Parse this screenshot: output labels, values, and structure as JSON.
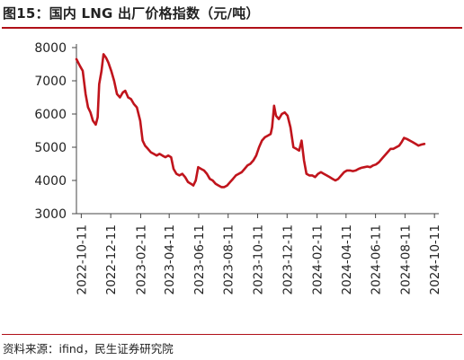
{
  "title": "图15：国内 LNG 出厂价格指数（元/吨）",
  "source": "资料来源：ifind，民生证券研究院",
  "colors": {
    "accent": "#b01018",
    "line": "#c0141c",
    "axis": "#444444"
  },
  "chart_data": {
    "type": "line",
    "title": "图15：国内 LNG 出厂价格指数（元/吨）",
    "xlabel": "",
    "ylabel": "",
    "ylim": [
      3000,
      8000
    ],
    "yticks": [
      3000,
      4000,
      5000,
      6000,
      7000,
      8000
    ],
    "xlim": [
      "2022-10-01",
      "2024-10-20"
    ],
    "xtick_labels": [
      "2022-10-11",
      "2022-12-11",
      "2023-02-11",
      "2023-04-11",
      "2023-06-11",
      "2023-08-11",
      "2023-10-11",
      "2023-12-11",
      "2024-02-11",
      "2024-04-11",
      "2024-06-11",
      "2024-08-11",
      "2024-10-11"
    ],
    "grid": false,
    "legend": "none",
    "series": [
      {
        "name": "",
        "points": [
          [
            "2022-10-01",
            7650
          ],
          [
            "2022-10-08",
            7450
          ],
          [
            "2022-10-14",
            7300
          ],
          [
            "2022-10-20",
            6600
          ],
          [
            "2022-10-25",
            6200
          ],
          [
            "2022-10-30",
            6050
          ],
          [
            "2022-11-04",
            5800
          ],
          [
            "2022-11-10",
            5680
          ],
          [
            "2022-11-14",
            5900
          ],
          [
            "2022-11-17",
            6900
          ],
          [
            "2022-11-22",
            7300
          ],
          [
            "2022-11-26",
            7800
          ],
          [
            "2022-12-01",
            7700
          ],
          [
            "2022-12-06",
            7550
          ],
          [
            "2022-12-12",
            7300
          ],
          [
            "2022-12-18",
            7000
          ],
          [
            "2022-12-24",
            6600
          ],
          [
            "2022-12-30",
            6500
          ],
          [
            "2023-01-05",
            6650
          ],
          [
            "2023-01-10",
            6700
          ],
          [
            "2023-01-16",
            6500
          ],
          [
            "2023-01-22",
            6450
          ],
          [
            "2023-01-28",
            6300
          ],
          [
            "2023-02-03",
            6200
          ],
          [
            "2023-02-10",
            5800
          ],
          [
            "2023-02-15",
            5200
          ],
          [
            "2023-02-20",
            5050
          ],
          [
            "2023-02-26",
            4950
          ],
          [
            "2023-03-04",
            4850
          ],
          [
            "2023-03-10",
            4800
          ],
          [
            "2023-03-16",
            4750
          ],
          [
            "2023-03-22",
            4800
          ],
          [
            "2023-03-28",
            4750
          ],
          [
            "2023-04-03",
            4700
          ],
          [
            "2023-04-09",
            4750
          ],
          [
            "2023-04-15",
            4700
          ],
          [
            "2023-04-20",
            4350
          ],
          [
            "2023-04-26",
            4200
          ],
          [
            "2023-05-02",
            4150
          ],
          [
            "2023-05-08",
            4200
          ],
          [
            "2023-05-14",
            4100
          ],
          [
            "2023-05-20",
            3950
          ],
          [
            "2023-05-26",
            3900
          ],
          [
            "2023-05-31",
            3850
          ],
          [
            "2023-06-05",
            4000
          ],
          [
            "2023-06-10",
            4400
          ],
          [
            "2023-06-16",
            4350
          ],
          [
            "2023-06-22",
            4300
          ],
          [
            "2023-06-28",
            4200
          ],
          [
            "2023-07-04",
            4050
          ],
          [
            "2023-07-10",
            4000
          ],
          [
            "2023-07-16",
            3900
          ],
          [
            "2023-07-22",
            3850
          ],
          [
            "2023-07-28",
            3800
          ],
          [
            "2023-08-03",
            3800
          ],
          [
            "2023-08-09",
            3850
          ],
          [
            "2023-08-15",
            3950
          ],
          [
            "2023-08-21",
            4050
          ],
          [
            "2023-08-27",
            4150
          ],
          [
            "2023-09-02",
            4200
          ],
          [
            "2023-09-08",
            4250
          ],
          [
            "2023-09-14",
            4350
          ],
          [
            "2023-09-20",
            4450
          ],
          [
            "2023-09-26",
            4500
          ],
          [
            "2023-10-02",
            4600
          ],
          [
            "2023-10-08",
            4750
          ],
          [
            "2023-10-14",
            5000
          ],
          [
            "2023-10-20",
            5200
          ],
          [
            "2023-10-26",
            5300
          ],
          [
            "2023-11-01",
            5350
          ],
          [
            "2023-11-07",
            5400
          ],
          [
            "2023-11-10",
            5600
          ],
          [
            "2023-11-14",
            6250
          ],
          [
            "2023-11-18",
            5950
          ],
          [
            "2023-11-24",
            5850
          ],
          [
            "2023-11-30",
            6000
          ],
          [
            "2023-12-06",
            6050
          ],
          [
            "2023-12-12",
            5950
          ],
          [
            "2023-12-18",
            5600
          ],
          [
            "2023-12-24",
            5000
          ],
          [
            "2023-12-30",
            4950
          ],
          [
            "2024-01-05",
            4900
          ],
          [
            "2024-01-10",
            5200
          ],
          [
            "2024-01-15",
            4600
          ],
          [
            "2024-01-20",
            4200
          ],
          [
            "2024-01-26",
            4150
          ],
          [
            "2024-02-01",
            4150
          ],
          [
            "2024-02-07",
            4100
          ],
          [
            "2024-02-13",
            4200
          ],
          [
            "2024-02-19",
            4250
          ],
          [
            "2024-02-25",
            4200
          ],
          [
            "2024-03-02",
            4150
          ],
          [
            "2024-03-08",
            4100
          ],
          [
            "2024-03-14",
            4050
          ],
          [
            "2024-03-20",
            4000
          ],
          [
            "2024-03-26",
            4050
          ],
          [
            "2024-04-01",
            4150
          ],
          [
            "2024-04-07",
            4250
          ],
          [
            "2024-04-13",
            4300
          ],
          [
            "2024-04-19",
            4300
          ],
          [
            "2024-04-25",
            4280
          ],
          [
            "2024-05-01",
            4300
          ],
          [
            "2024-05-07",
            4350
          ],
          [
            "2024-05-13",
            4380
          ],
          [
            "2024-05-19",
            4400
          ],
          [
            "2024-05-25",
            4420
          ],
          [
            "2024-05-31",
            4400
          ],
          [
            "2024-06-06",
            4450
          ],
          [
            "2024-06-12",
            4480
          ],
          [
            "2024-06-18",
            4550
          ],
          [
            "2024-06-24",
            4650
          ],
          [
            "2024-06-30",
            4750
          ],
          [
            "2024-07-06",
            4850
          ],
          [
            "2024-07-12",
            4950
          ],
          [
            "2024-07-18",
            4950
          ],
          [
            "2024-07-24",
            5000
          ],
          [
            "2024-07-30",
            5050
          ],
          [
            "2024-08-04",
            5150
          ],
          [
            "2024-08-09",
            5280
          ],
          [
            "2024-08-15",
            5250
          ],
          [
            "2024-08-21",
            5200
          ],
          [
            "2024-08-27",
            5150
          ],
          [
            "2024-09-02",
            5100
          ],
          [
            "2024-09-08",
            5050
          ],
          [
            "2024-09-14",
            5080
          ],
          [
            "2024-09-20",
            5100
          ]
        ]
      }
    ]
  }
}
